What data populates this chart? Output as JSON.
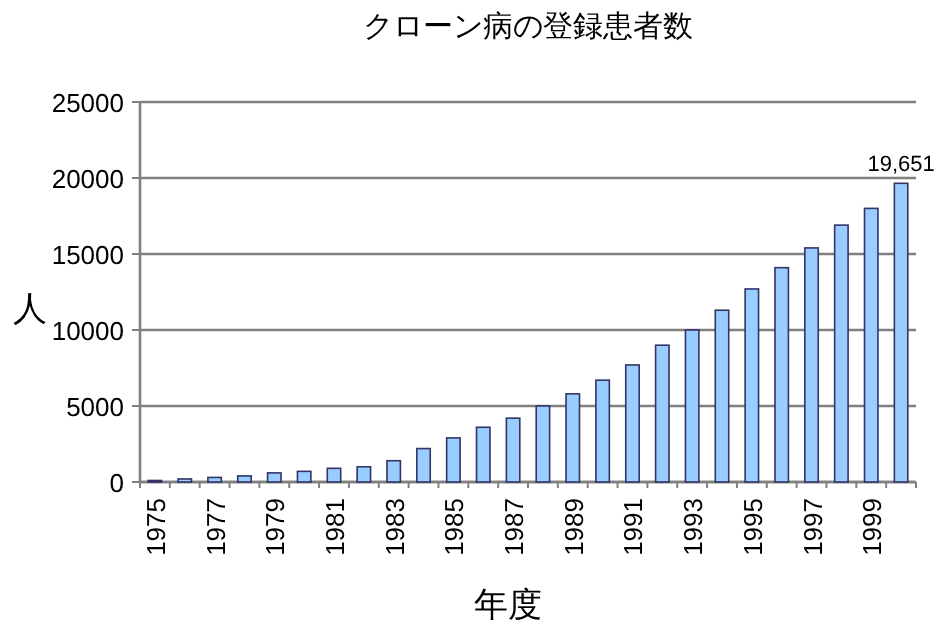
{
  "chart_data": {
    "type": "bar",
    "title": "クローン病の登録患者数",
    "xlabel": "年度",
    "ylabel": "人",
    "categories": [
      "1975",
      null,
      "1977",
      null,
      "1979",
      null,
      "1981",
      null,
      "1983",
      null,
      "1985",
      null,
      "1987",
      null,
      "1989",
      null,
      "1991",
      null,
      "1993",
      null,
      "1995",
      null,
      "1997",
      null,
      "1999",
      null
    ],
    "series": [
      {
        "color": "#99ccff",
        "values": [
          100,
          200,
          300,
          400,
          600,
          700,
          900,
          1000,
          1400,
          2200,
          2900,
          3600,
          4200,
          5000,
          5800,
          6700,
          7700,
          9000,
          10000,
          11300,
          12700,
          14100,
          15400,
          16900,
          18000,
          19651
        ],
        "value_labels": [
          null,
          null,
          null,
          null,
          null,
          null,
          null,
          null,
          null,
          null,
          null,
          null,
          null,
          null,
          null,
          null,
          null,
          null,
          null,
          null,
          null,
          null,
          null,
          null,
          null,
          "19,651"
        ]
      }
    ],
    "ylim": [
      0,
      25000
    ],
    "yticks": [
      0,
      5000,
      10000,
      15000,
      20000,
      25000
    ],
    "grid": "y"
  }
}
